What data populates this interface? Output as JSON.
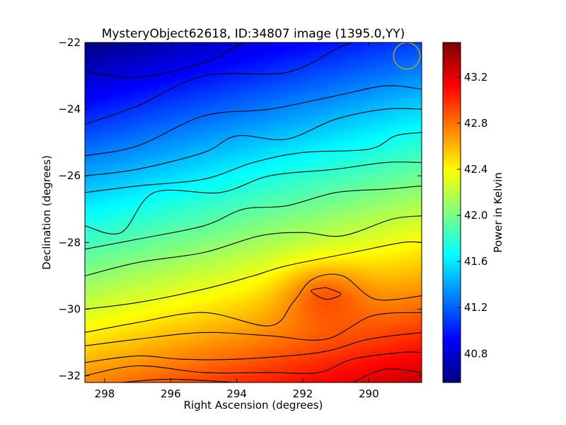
{
  "chart_data": {
    "type": "heatmap",
    "title": "MysteryObject62618, ID:34807 image (1395.0,YY)",
    "xlabel": "Right Ascension (degrees)",
    "ylabel": "Declination (degrees)",
    "xlim": [
      298.6,
      288.4
    ],
    "ylim": [
      -32.2,
      -22
    ],
    "x_ticks": [
      298,
      296,
      294,
      292,
      290
    ],
    "x_tick_labels": [
      "298",
      "296",
      "294",
      "292",
      "290"
    ],
    "y_ticks": [
      -22,
      -24,
      -26,
      -28,
      -30,
      -32
    ],
    "y_tick_labels": [
      "−22",
      "−24",
      "−26",
      "−28",
      "−30",
      "−32"
    ],
    "colorbar": {
      "label": "Power in Kelvin",
      "range": [
        40.55,
        43.5
      ],
      "ticks": [
        40.8,
        41.2,
        41.6,
        42.0,
        42.4,
        42.8,
        43.2
      ],
      "tick_labels": [
        "40.8",
        "41.2",
        "41.6",
        "42.0",
        "42.4",
        "42.8",
        "43.2"
      ],
      "colormap": "jet"
    },
    "surface": {
      "model": "smooth gradient, cold at top-left, hot at bottom-right, local hot spot",
      "base_at_dec_minus22": 40.55,
      "base_slope_per_deg_dec": -0.215,
      "ra_slope_per_deg": -0.055,
      "hot_spot": {
        "ra": 291.4,
        "dec": -29.5,
        "amplitude": 0.3
      }
    },
    "contours": [
      [
        [
          298.6,
          -22.85
        ],
        [
          297,
          -23.05
        ],
        [
          295,
          -22.6
        ],
        [
          293.8,
          -22
        ]
      ],
      [
        [
          298.6,
          -24.45
        ],
        [
          297,
          -23.9
        ],
        [
          295,
          -23.0
        ],
        [
          292.5,
          -22.9
        ],
        [
          291,
          -22.2
        ],
        [
          290.5,
          -22
        ]
      ],
      [
        [
          298.6,
          -25.4
        ],
        [
          297,
          -25.1
        ],
        [
          295,
          -24.2
        ],
        [
          293,
          -24.0
        ],
        [
          291,
          -23.6
        ],
        [
          289.5,
          -23.3
        ],
        [
          288.4,
          -23.4
        ]
      ],
      [
        [
          298.6,
          -26.0
        ],
        [
          297,
          -25.8
        ],
        [
          295,
          -25.3
        ],
        [
          294,
          -24.8
        ],
        [
          292.5,
          -24.9
        ],
        [
          291,
          -24.3
        ],
        [
          289.5,
          -24.0
        ],
        [
          288.4,
          -24.0
        ]
      ],
      [
        [
          298.6,
          -26.5
        ],
        [
          297,
          -26.3
        ],
        [
          295,
          -26.1
        ],
        [
          293.5,
          -25.6
        ],
        [
          292,
          -25.3
        ],
        [
          290,
          -25.2
        ],
        [
          289.2,
          -24.8
        ],
        [
          288.4,
          -24.7
        ]
      ],
      [
        [
          298.6,
          -27.5
        ],
        [
          297.5,
          -27.7
        ],
        [
          296.5,
          -26.5
        ],
        [
          294.5,
          -26.5
        ],
        [
          293,
          -26.0
        ],
        [
          291,
          -25.8
        ],
        [
          289.5,
          -25.6
        ],
        [
          288.4,
          -25.6
        ]
      ],
      [
        [
          298.6,
          -28.2
        ],
        [
          297,
          -27.9
        ],
        [
          295,
          -27.5
        ],
        [
          293.8,
          -27.0
        ],
        [
          292.5,
          -26.9
        ],
        [
          291,
          -26.5
        ],
        [
          289.5,
          -26.4
        ],
        [
          288.4,
          -26.3
        ]
      ],
      [
        [
          298.6,
          -29.0
        ],
        [
          297,
          -28.6
        ],
        [
          295,
          -28.3
        ],
        [
          293.3,
          -27.8
        ],
        [
          292,
          -27.7
        ],
        [
          290.8,
          -27.8
        ],
        [
          289.3,
          -27.3
        ],
        [
          288.4,
          -27.2
        ]
      ],
      [
        [
          298.6,
          -30.0
        ],
        [
          297,
          -29.8
        ],
        [
          295,
          -29.4
        ],
        [
          293.5,
          -29.0
        ],
        [
          292.5,
          -28.7
        ],
        [
          290.5,
          -28.3
        ],
        [
          289,
          -28.0
        ],
        [
          288.4,
          -28.0
        ]
      ],
      [
        [
          291.3,
          -29.35
        ],
        [
          291.75,
          -29.45
        ],
        [
          291.3,
          -29.7
        ],
        [
          290.85,
          -29.55
        ],
        [
          291.3,
          -29.35
        ]
      ],
      [
        [
          298.6,
          -30.7
        ],
        [
          297,
          -30.4
        ],
        [
          295,
          -30.1
        ],
        [
          293,
          -30.5
        ],
        [
          292.3,
          -29.8
        ],
        [
          291.7,
          -29.1
        ],
        [
          290.8,
          -29.0
        ],
        [
          289.8,
          -29.7
        ],
        [
          288.4,
          -29.6
        ]
      ],
      [
        [
          298.6,
          -31.1
        ],
        [
          297,
          -30.9
        ],
        [
          295,
          -30.7
        ],
        [
          293,
          -30.8
        ],
        [
          291.3,
          -30.9
        ],
        [
          289.9,
          -30.2
        ],
        [
          288.4,
          -30.1
        ]
      ],
      [
        [
          298.6,
          -31.6
        ],
        [
          297,
          -31.4
        ],
        [
          295.7,
          -31.5
        ],
        [
          294,
          -31.5
        ],
        [
          291.5,
          -31.3
        ],
        [
          290,
          -30.9
        ],
        [
          288.4,
          -30.7
        ]
      ],
      [
        [
          298.6,
          -32.0
        ],
        [
          297,
          -31.7
        ],
        [
          295,
          -31.9
        ],
        [
          293,
          -31.9
        ],
        [
          291.5,
          -31.9
        ],
        [
          290.5,
          -31.5
        ],
        [
          289,
          -31.3
        ],
        [
          288.4,
          -31.3
        ]
      ],
      [
        [
          297.5,
          -32.2
        ],
        [
          296,
          -32.1
        ],
        [
          294,
          -32.2
        ]
      ],
      [
        [
          290.5,
          -32.2
        ],
        [
          289.5,
          -31.8
        ],
        [
          288.4,
          -31.9
        ]
      ]
    ],
    "beam_marker": {
      "shape": "circle",
      "ra": 288.85,
      "dec": -22.4,
      "radius_deg": 0.4,
      "color": "#c8b400"
    },
    "contour_color": "#000000"
  }
}
